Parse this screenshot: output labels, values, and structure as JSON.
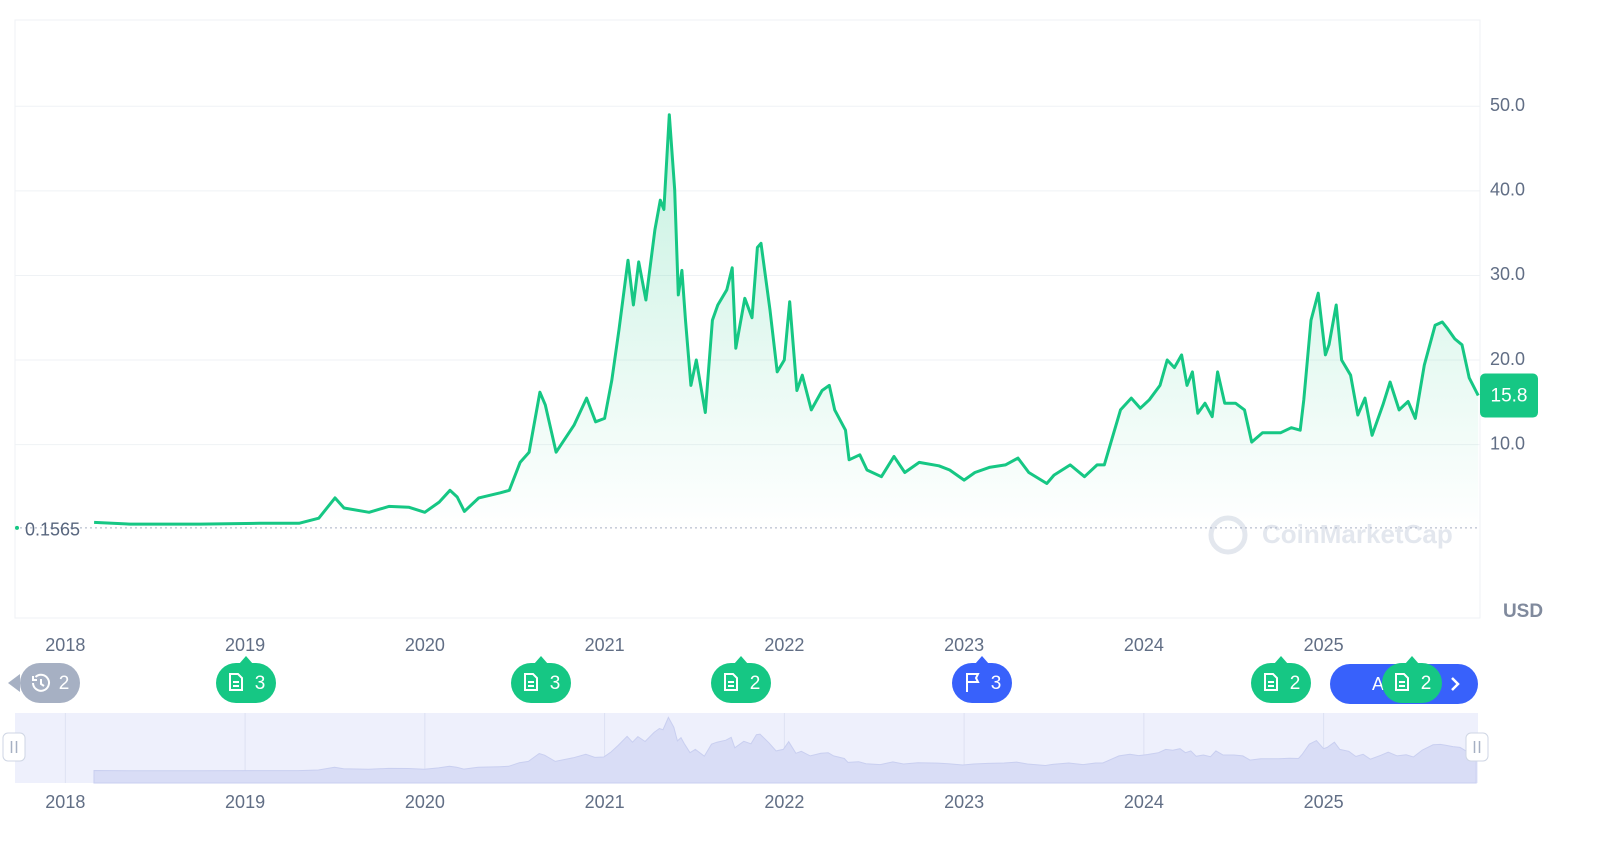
{
  "chart_data": {
    "type": "line",
    "series": [
      {
        "color": "#16c784",
        "values": [
          0.8,
          0.6,
          0.6,
          0.7,
          0.7,
          1.3,
          3.7,
          2.5,
          2.0,
          2.7,
          2.6,
          2.0,
          3.2,
          4.6,
          3.8,
          2.1,
          3.7,
          4.3,
          4.6,
          7.9,
          9.1,
          16.2,
          14.7,
          9.1,
          12.3,
          15.5,
          12.7,
          13.1,
          17.6,
          23.6,
          31.8,
          26.5,
          31.6,
          27.1,
          35.4,
          38.9,
          37.8,
          49.0,
          40.1,
          27.7,
          30.6,
          24.7,
          17.0,
          20.0,
          13.8,
          24.7,
          26.5,
          28.3,
          30.9,
          21.4,
          27.3,
          25.0,
          33.3,
          33.8,
          25.9,
          18.6,
          20.0,
          26.9,
          16.4,
          18.2,
          14.1,
          16.4,
          17.0,
          14.1,
          11.7,
          8.2,
          8.8,
          7.0,
          6.2,
          8.6,
          6.7,
          7.9,
          7.5,
          7.0,
          5.8,
          6.7,
          7.3,
          7.6,
          8.4,
          6.7,
          5.4,
          6.4,
          7.6,
          6.2,
          7.6,
          7.6,
          10.5,
          14.1,
          15.5,
          14.3,
          15.3,
          17.0,
          20.0,
          19.1,
          20.6,
          17.0,
          18.6,
          13.7,
          14.9,
          13.3,
          18.6,
          14.9,
          14.9,
          14.1,
          10.3,
          11.4,
          11.4,
          12.0,
          11.7,
          15.3,
          24.7,
          27.9,
          20.6,
          21.8,
          26.5,
          20.0,
          18.2,
          13.5,
          15.5,
          11.1,
          14.7,
          17.4,
          14.1,
          15.1,
          13.1,
          19.4,
          24.1,
          24.5,
          23.7,
          22.5,
          21.8,
          17.9,
          15.8
        ]
      }
    ],
    "x": [
      2018.16,
      2018.36,
      2018.75,
      2019.08,
      2019.3,
      2019.41,
      2019.5,
      2019.55,
      2019.69,
      2019.8,
      2019.91,
      2020.0,
      2020.08,
      2020.14,
      2020.18,
      2020.22,
      2020.3,
      2020.42,
      2020.47,
      2020.53,
      2020.58,
      2020.64,
      2020.67,
      2020.73,
      2020.83,
      2020.9,
      2020.95,
      2021.0,
      2021.04,
      2021.08,
      2021.13,
      2021.16,
      2021.19,
      2021.23,
      2021.28,
      2021.31,
      2021.33,
      2021.36,
      2021.39,
      2021.41,
      2021.43,
      2021.45,
      2021.48,
      2021.51,
      2021.56,
      2021.6,
      2021.63,
      2021.68,
      2021.71,
      2021.73,
      2021.78,
      2021.82,
      2021.85,
      2021.87,
      2021.92,
      2021.96,
      2022.0,
      2022.03,
      2022.07,
      2022.1,
      2022.15,
      2022.21,
      2022.25,
      2022.28,
      2022.34,
      2022.36,
      2022.42,
      2022.46,
      2022.54,
      2022.61,
      2022.67,
      2022.75,
      2022.86,
      2022.92,
      2023.0,
      2023.06,
      2023.14,
      2023.23,
      2023.3,
      2023.36,
      2023.46,
      2023.5,
      2023.59,
      2023.67,
      2023.74,
      2023.78,
      2023.82,
      2023.87,
      2023.93,
      2023.98,
      2024.03,
      2024.09,
      2024.13,
      2024.17,
      2024.21,
      2024.24,
      2024.27,
      2024.3,
      2024.34,
      2024.38,
      2024.41,
      2024.45,
      2024.51,
      2024.56,
      2024.6,
      2024.66,
      2024.76,
      2024.82,
      2024.87,
      2024.89,
      2024.93,
      2024.97,
      2025.01,
      2025.03,
      2025.07,
      2025.1,
      2025.15,
      2025.19,
      2025.23,
      2025.27,
      2025.33,
      2025.37,
      2025.42,
      2025.47,
      2025.51,
      2025.56,
      2025.62,
      2025.66,
      2025.69,
      2025.73,
      2025.77,
      2025.81,
      2025.86
    ],
    "xlim": [
      2017.72,
      2025.87
    ],
    "xticks": [
      2018,
      2019,
      2020,
      2021,
      2022,
      2023,
      2024,
      2025
    ],
    "ylim": [
      -10.5,
      60.2
    ],
    "yticks": [
      {
        "value": 10,
        "label": "10.0"
      },
      {
        "value": 20,
        "label": "20.0"
      },
      {
        "value": 30,
        "label": "30.0"
      },
      {
        "value": 40,
        "label": "40.0"
      },
      {
        "value": 50,
        "label": "50.0"
      }
    ],
    "grid": true,
    "start_value": 0.1565,
    "current_value": 15.8,
    "unit": "USD",
    "watermark": "CoinMarketCap",
    "events": [
      {
        "kind": "history",
        "count": 2
      },
      {
        "kind": "doc",
        "count": 3
      },
      {
        "kind": "doc",
        "count": 3
      },
      {
        "kind": "doc",
        "count": 2
      },
      {
        "kind": "flag",
        "count": 3
      },
      {
        "kind": "doc",
        "count": 2
      },
      {
        "kind": "doc",
        "count": 2
      }
    ],
    "overlay_label": "A"
  }
}
